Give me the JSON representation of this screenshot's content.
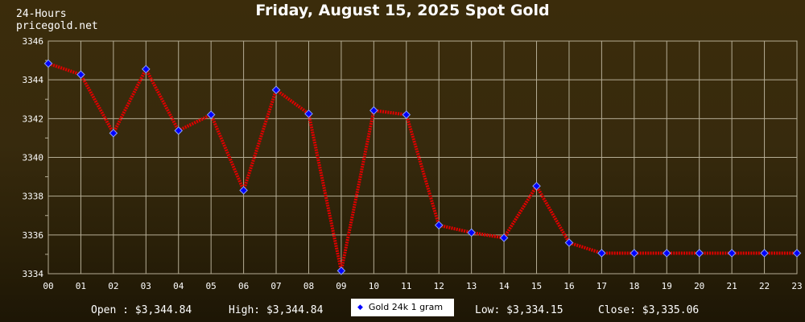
{
  "header": {
    "brand_line1": "24-Hours",
    "brand_line2": "pricegold.net",
    "title": "Friday, August 15, 2025 Spot Gold"
  },
  "stats": {
    "open": "Open : $3,344.84",
    "high": "High: $3,344.84",
    "low": "Low: $3,334.15",
    "close": "Close: $3,335.06"
  },
  "colors": {
    "line": "#e00000",
    "marker_fill": "#0000ff",
    "marker_stroke": "#8aa0ff",
    "grid": "#b5ad95"
  },
  "chart_data": {
    "type": "line",
    "title": "Friday, August 15, 2025 Spot Gold",
    "xlabel": "",
    "ylabel": "",
    "x": [
      "00",
      "01",
      "02",
      "03",
      "04",
      "05",
      "06",
      "07",
      "08",
      "09",
      "10",
      "11",
      "12",
      "13",
      "14",
      "15",
      "16",
      "17",
      "18",
      "19",
      "20",
      "21",
      "22",
      "23"
    ],
    "ylim": [
      3334,
      3346
    ],
    "yticks": [
      3334,
      3336,
      3338,
      3340,
      3342,
      3344,
      3346
    ],
    "grid": true,
    "legend_position": "bottom-center",
    "series": [
      {
        "name": "Gold 24k 1 gram",
        "values": [
          3344.84,
          3344.27,
          3341.25,
          3344.55,
          3341.38,
          3342.2,
          3338.3,
          3343.48,
          3342.25,
          3334.15,
          3342.42,
          3342.2,
          3336.5,
          3336.12,
          3335.85,
          3338.52,
          3335.6,
          3335.06,
          3335.06,
          3335.06,
          3335.06,
          3335.06,
          3335.06,
          3335.06
        ]
      }
    ]
  }
}
